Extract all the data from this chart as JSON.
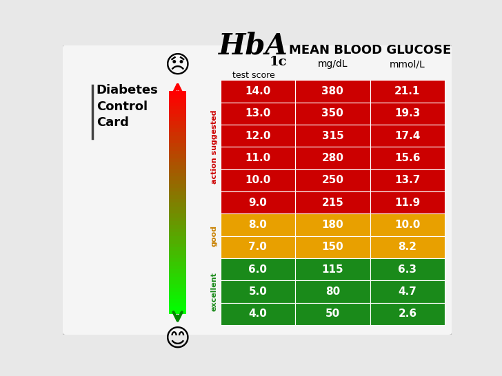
{
  "title_hba1c": "HbA",
  "title_sub": "1c",
  "title_test": "test score",
  "title_mbg": "MEAN BLOOD GLUCOSE",
  "title_mgdl": "mg/dL",
  "title_mmol": "mmol/L",
  "left_title": "Diabetes\nControl\nCard",
  "rows": [
    {
      "hba1c": "14.0",
      "mgdl": "380",
      "mmol": "21.1",
      "color": "#cc0000"
    },
    {
      "hba1c": "13.0",
      "mgdl": "350",
      "mmol": "19.3",
      "color": "#cc0000"
    },
    {
      "hba1c": "12.0",
      "mgdl": "315",
      "mmol": "17.4",
      "color": "#cc0000"
    },
    {
      "hba1c": "11.0",
      "mgdl": "280",
      "mmol": "15.6",
      "color": "#cc0000"
    },
    {
      "hba1c": "10.0",
      "mgdl": "250",
      "mmol": "13.7",
      "color": "#cc0000"
    },
    {
      "hba1c": "9.0",
      "mgdl": "215",
      "mmol": "11.9",
      "color": "#cc0000"
    },
    {
      "hba1c": "8.0",
      "mgdl": "180",
      "mmol": "10.0",
      "color": "#e8a000"
    },
    {
      "hba1c": "7.0",
      "mgdl": "150",
      "mmol": "8.2",
      "color": "#e8a000"
    },
    {
      "hba1c": "6.0",
      "mgdl": "115",
      "mmol": "6.3",
      "color": "#1a8a1a"
    },
    {
      "hba1c": "5.0",
      "mgdl": "80",
      "mmol": "4.7",
      "color": "#1a8a1a"
    },
    {
      "hba1c": "4.0",
      "mgdl": "50",
      "mmol": "2.6",
      "color": "#1a8a1a"
    }
  ],
  "sections": [
    {
      "text": "action suggested",
      "start": 0,
      "end": 5,
      "color": "#cc0000"
    },
    {
      "text": "good",
      "start": 6,
      "end": 7,
      "color": "#c88000"
    },
    {
      "text": "excellent",
      "start": 8,
      "end": 10,
      "color": "#1a8a1a"
    }
  ],
  "bg_color": "#e8e8e8",
  "border_color": "#aaaaaa"
}
